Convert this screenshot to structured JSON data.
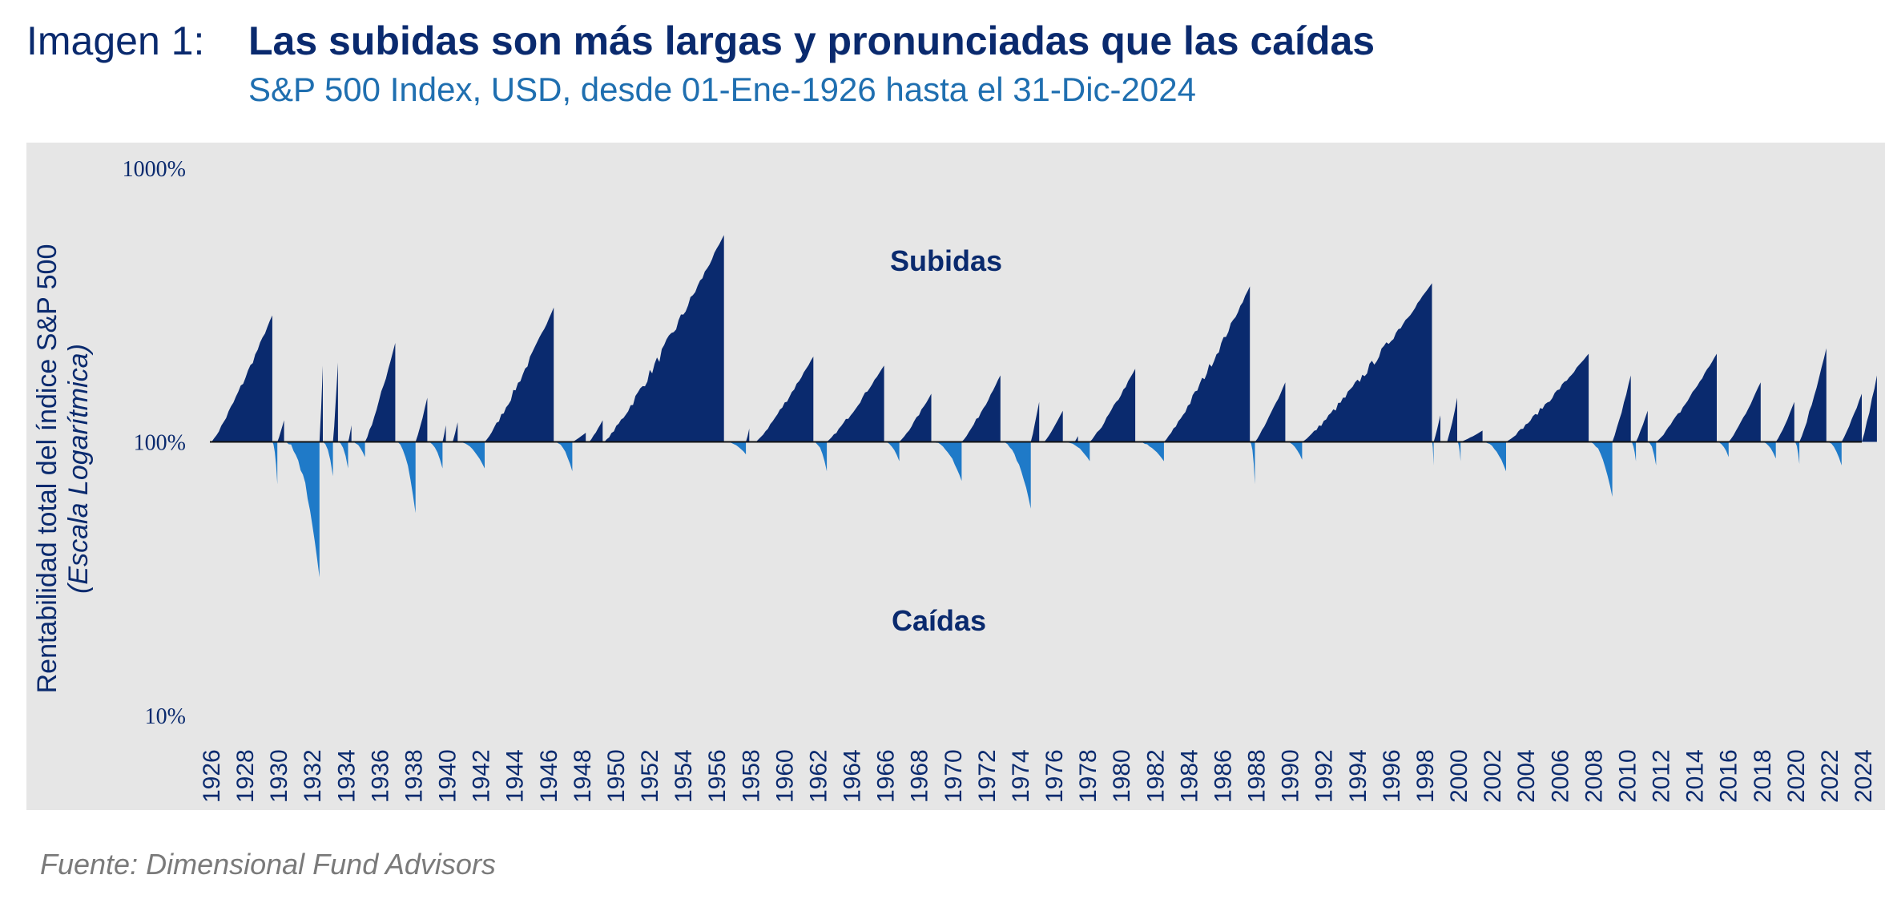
{
  "header": {
    "label": "Imagen 1:",
    "title": "Las subidas son más largas y pronunciadas que las caídas",
    "subtitle": "S&P 500 Index, USD, desde 01-Ene-1926 hasta el 31-Dic-2024"
  },
  "source": "Fuente: Dimensional Fund Advisors",
  "colors": {
    "up": "#0a2a6e",
    "down": "#1f7ac8",
    "panel": "#e6e6e6",
    "text": "#0a2a6e"
  },
  "chart_data": {
    "type": "area",
    "yscale": "log",
    "ylabel": "Rentabilidad total del índice S&P 500",
    "ylabel_sub": "(Escala Logarítmica)",
    "ylim": [
      10,
      1000
    ],
    "yticks": [
      "1000%",
      "100%",
      "10%"
    ],
    "xlim": [
      1926,
      2024
    ],
    "xticks": [
      "1926",
      "1928",
      "1930",
      "1932",
      "1934",
      "1936",
      "1938",
      "1940",
      "1942",
      "1944",
      "1946",
      "1948",
      "1950",
      "1952",
      "1954",
      "1956",
      "1958",
      "1960",
      "1962",
      "1964",
      "1966",
      "1968",
      "1970",
      "1972",
      "1974",
      "1976",
      "1978",
      "1980",
      "1982",
      "1984",
      "1986",
      "1988",
      "1990",
      "1992",
      "1994",
      "1996",
      "1998",
      "2000",
      "2002",
      "2004",
      "2006",
      "2008",
      "2010",
      "2012",
      "2014",
      "2016",
      "2018",
      "2020",
      "2022",
      "2024"
    ],
    "annotations": {
      "up_label": "Subidas",
      "down_label": "Caídas"
    },
    "baseline": 100,
    "series": [
      {
        "name": "Subidas",
        "segments": [
          {
            "x": [
              1926.1,
              1929.7
            ],
            "y": [
              100,
              290
            ]
          },
          {
            "x": [
              1930.0,
              1930.4
            ],
            "y": [
              100,
              120
            ]
          },
          {
            "x": [
              1932.5,
              1932.7
            ],
            "y": [
              100,
              190
            ]
          },
          {
            "x": [
              1933.3,
              1933.6
            ],
            "y": [
              100,
              195
            ]
          },
          {
            "x": [
              1934.2,
              1934.4
            ],
            "y": [
              100,
              115
            ]
          },
          {
            "x": [
              1935.2,
              1937.0
            ],
            "y": [
              100,
              230
            ]
          },
          {
            "x": [
              1938.2,
              1938.9
            ],
            "y": [
              100,
              145
            ]
          },
          {
            "x": [
              1939.8,
              1940.0
            ],
            "y": [
              100,
              115
            ]
          },
          {
            "x": [
              1940.4,
              1940.7
            ],
            "y": [
              100,
              118
            ]
          },
          {
            "x": [
              1942.3,
              1946.4
            ],
            "y": [
              100,
              310
            ]
          },
          {
            "x": [
              1947.5,
              1948.3
            ],
            "y": [
              100,
              108
            ]
          },
          {
            "x": [
              1948.5,
              1949.3
            ],
            "y": [
              100,
              120
            ]
          },
          {
            "x": [
              1949.4,
              1956.5
            ],
            "y": [
              100,
              570
            ]
          },
          {
            "x": [
              1957.8,
              1958.0
            ],
            "y": [
              100,
              112
            ]
          },
          {
            "x": [
              1958.4,
              1961.8
            ],
            "y": [
              100,
              205
            ]
          },
          {
            "x": [
              1962.6,
              1966.0
            ],
            "y": [
              100,
              190
            ]
          },
          {
            "x": [
              1966.9,
              1968.8
            ],
            "y": [
              100,
              150
            ]
          },
          {
            "x": [
              1970.6,
              1972.9
            ],
            "y": [
              100,
              175
            ]
          },
          {
            "x": [
              1974.7,
              1975.2
            ],
            "y": [
              100,
              140
            ]
          },
          {
            "x": [
              1975.5,
              1976.6
            ],
            "y": [
              100,
              130
            ]
          },
          {
            "x": [
              1977.3,
              1977.5
            ],
            "y": [
              100,
              105
            ]
          },
          {
            "x": [
              1978.2,
              1980.9
            ],
            "y": [
              100,
              185
            ]
          },
          {
            "x": [
              1982.6,
              1987.7
            ],
            "y": [
              100,
              370
            ]
          },
          {
            "x": [
              1988.0,
              1989.8
            ],
            "y": [
              100,
              165
            ]
          },
          {
            "x": [
              1990.8,
              1998.5
            ],
            "y": [
              100,
              380
            ]
          },
          {
            "x": [
              1998.6,
              1999.0
            ],
            "y": [
              100,
              125
            ]
          },
          {
            "x": [
              1999.4,
              2000.0
            ],
            "y": [
              100,
              145
            ]
          },
          {
            "x": [
              2000.2,
              2001.5
            ],
            "y": [
              100,
              110
            ]
          },
          {
            "x": [
              2002.9,
              2007.8
            ],
            "y": [
              100,
              210
            ]
          },
          {
            "x": [
              2009.2,
              2010.3
            ],
            "y": [
              100,
              175
            ]
          },
          {
            "x": [
              2010.6,
              2011.3
            ],
            "y": [
              100,
              130
            ]
          },
          {
            "x": [
              2011.8,
              2015.4
            ],
            "y": [
              100,
              210
            ]
          },
          {
            "x": [
              2016.1,
              2018.0
            ],
            "y": [
              100,
              165
            ]
          },
          {
            "x": [
              2018.9,
              2020.0
            ],
            "y": [
              100,
              140
            ]
          },
          {
            "x": [
              2020.3,
              2021.9
            ],
            "y": [
              100,
              220
            ]
          },
          {
            "x": [
              2022.8,
              2024.0
            ],
            "y": [
              100,
              150
            ]
          },
          {
            "x": [
              2024.0,
              2024.9
            ],
            "y": [
              100,
              175
            ]
          }
        ]
      },
      {
        "name": "Caídas",
        "segments": [
          {
            "x": [
              1929.7,
              1930.0
            ],
            "y": [
              100,
              70
            ]
          },
          {
            "x": [
              1930.4,
              1932.5
            ],
            "y": [
              100,
              32
            ]
          },
          {
            "x": [
              1932.7,
              1933.3
            ],
            "y": [
              100,
              75
            ]
          },
          {
            "x": [
              1933.6,
              1934.2
            ],
            "y": [
              100,
              80
            ]
          },
          {
            "x": [
              1934.4,
              1935.2
            ],
            "y": [
              100,
              88
            ]
          },
          {
            "x": [
              1937.0,
              1938.2
            ],
            "y": [
              100,
              55
            ]
          },
          {
            "x": [
              1938.9,
              1939.8
            ],
            "y": [
              100,
              80
            ]
          },
          {
            "x": [
              1940.7,
              1942.3
            ],
            "y": [
              100,
              80
            ]
          },
          {
            "x": [
              1946.4,
              1947.5
            ],
            "y": [
              100,
              78
            ]
          },
          {
            "x": [
              1956.5,
              1957.8
            ],
            "y": [
              100,
              90
            ]
          },
          {
            "x": [
              1961.8,
              1962.6
            ],
            "y": [
              100,
              78
            ]
          },
          {
            "x": [
              1966.0,
              1966.9
            ],
            "y": [
              100,
              85
            ]
          },
          {
            "x": [
              1968.8,
              1970.6
            ],
            "y": [
              100,
              72
            ]
          },
          {
            "x": [
              1972.9,
              1974.7
            ],
            "y": [
              100,
              57
            ]
          },
          {
            "x": [
              1976.6,
              1978.2
            ],
            "y": [
              100,
              85
            ]
          },
          {
            "x": [
              1980.9,
              1982.6
            ],
            "y": [
              100,
              85
            ]
          },
          {
            "x": [
              1987.7,
              1988.0
            ],
            "y": [
              100,
              70
            ]
          },
          {
            "x": [
              1989.8,
              1990.8
            ],
            "y": [
              100,
              86
            ]
          },
          {
            "x": [
              1998.5,
              1998.6
            ],
            "y": [
              100,
              82
            ]
          },
          {
            "x": [
              2000.0,
              2000.2
            ],
            "y": [
              100,
              85
            ]
          },
          {
            "x": [
              2001.5,
              2002.9
            ],
            "y": [
              100,
              78
            ]
          },
          {
            "x": [
              2007.8,
              2009.2
            ],
            "y": [
              100,
              63
            ]
          },
          {
            "x": [
              2010.3,
              2010.6
            ],
            "y": [
              100,
              85
            ]
          },
          {
            "x": [
              2011.3,
              2011.8
            ],
            "y": [
              100,
              82
            ]
          },
          {
            "x": [
              2015.4,
              2016.1
            ],
            "y": [
              100,
              88
            ]
          },
          {
            "x": [
              2018.0,
              2018.9
            ],
            "y": [
              100,
              87
            ]
          },
          {
            "x": [
              2020.0,
              2020.3
            ],
            "y": [
              100,
              83
            ]
          },
          {
            "x": [
              2021.9,
              2022.8
            ],
            "y": [
              100,
              82
            ]
          }
        ]
      }
    ]
  }
}
